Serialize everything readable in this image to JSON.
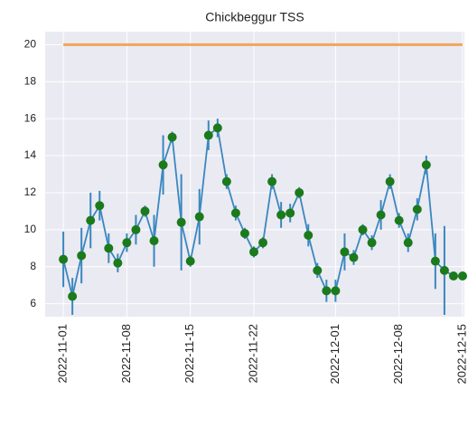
{
  "chart_data": {
    "type": "line",
    "title": "Chickbeggur TSS",
    "x": [
      "2022-11-01",
      "2022-11-02",
      "2022-11-03",
      "2022-11-04",
      "2022-11-05",
      "2022-11-06",
      "2022-11-07",
      "2022-11-08",
      "2022-11-09",
      "2022-11-10",
      "2022-11-11",
      "2022-11-12",
      "2022-11-13",
      "2022-11-14",
      "2022-11-15",
      "2022-11-16",
      "2022-11-17",
      "2022-11-18",
      "2022-11-19",
      "2022-11-20",
      "2022-11-21",
      "2022-11-22",
      "2022-11-23",
      "2022-11-24",
      "2022-11-25",
      "2022-11-26",
      "2022-11-27",
      "2022-11-28",
      "2022-11-29",
      "2022-11-30",
      "2022-12-01",
      "2022-12-02",
      "2022-12-03",
      "2022-12-04",
      "2022-12-05",
      "2022-12-06",
      "2022-12-07",
      "2022-12-08",
      "2022-12-09",
      "2022-12-10",
      "2022-12-11",
      "2022-12-12",
      "2022-12-13",
      "2022-12-14",
      "2022-12-15"
    ],
    "series": [
      {
        "color": "#3a87c0",
        "marker_color": "#1b7a1b",
        "values": [
          8.4,
          6.4,
          8.6,
          10.5,
          11.3,
          9.0,
          8.2,
          9.3,
          10.0,
          11.0,
          9.4,
          13.5,
          15.0,
          10.4,
          8.3,
          10.7,
          15.1,
          15.5,
          12.6,
          10.9,
          9.8,
          8.8,
          9.3,
          12.6,
          10.8,
          10.9,
          12.0,
          9.7,
          7.8,
          6.7,
          6.7,
          8.8,
          8.5,
          10.0,
          9.3,
          10.8,
          12.6,
          10.5,
          9.3,
          11.1,
          13.5,
          8.3,
          7.8,
          7.5,
          7.5
        ],
        "errors": [
          1.5,
          1.0,
          1.5,
          1.5,
          0.8,
          0.8,
          0.5,
          0.5,
          0.8,
          0.3,
          1.4,
          1.6,
          0.3,
          2.6,
          0.3,
          1.5,
          0.8,
          0.5,
          0.4,
          0.4,
          0.3,
          0.3,
          0.3,
          0.4,
          0.7,
          0.5,
          0.3,
          0.6,
          0.4,
          0.6,
          0.6,
          1.0,
          0.4,
          0.3,
          0.4,
          0.8,
          0.4,
          0.4,
          0.5,
          0.6,
          0.5,
          1.5,
          2.4,
          0,
          0
        ]
      }
    ],
    "reference_line": {
      "value": 20,
      "color": "#f2a45c",
      "x": [
        "2022-11-01",
        "2022-12-15"
      ]
    },
    "xlim": [
      "2022-10-30",
      "2022-12-15"
    ],
    "xticks": [
      "2022-11-01",
      "2022-11-08",
      "2022-11-15",
      "2022-11-22",
      "2022-12-01",
      "2022-12-08",
      "2022-12-15"
    ],
    "ylim": [
      5.3,
      20.7
    ],
    "yticks": [
      6,
      8,
      10,
      12,
      14,
      16,
      18,
      20
    ],
    "grid": true
  }
}
